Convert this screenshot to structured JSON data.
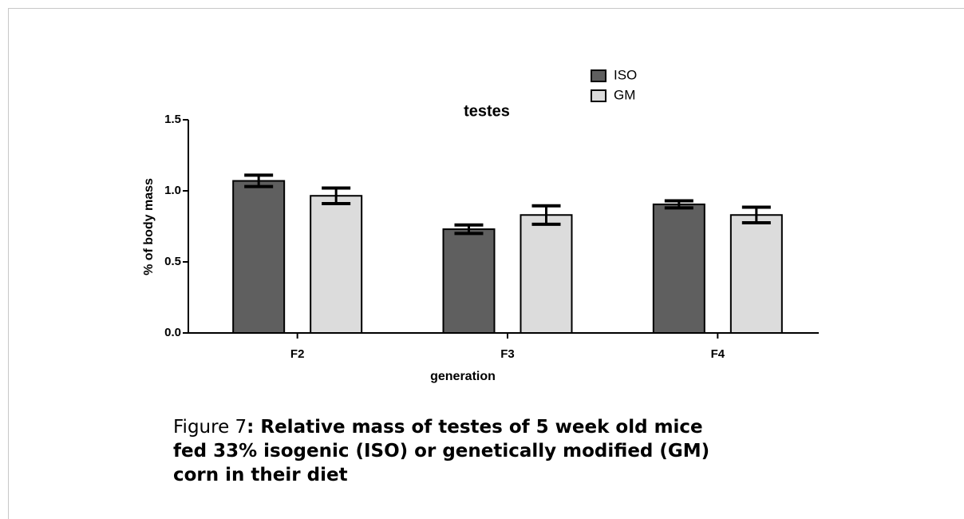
{
  "chart_data": {
    "type": "bar",
    "title": "testes",
    "x_label": "generation",
    "y_label": "% of body mass",
    "categories": [
      "F2",
      "F3",
      "F4"
    ],
    "series": [
      {
        "name": "ISO",
        "color": "#5f5f5f",
        "values": [
          1.07,
          0.73,
          0.905
        ],
        "errors": [
          0.04,
          0.03,
          0.025
        ]
      },
      {
        "name": "GM",
        "color": "#dcdcdc",
        "values": [
          0.965,
          0.83,
          0.83
        ],
        "errors": [
          0.055,
          0.065,
          0.055
        ]
      }
    ],
    "ylim": [
      0,
      1.5
    ],
    "yticks": [
      {
        "value": 0,
        "label": "0.0"
      },
      0.5,
      {
        "value": 1,
        "label": "1.0"
      },
      1.5
    ],
    "legend": "top-right"
  },
  "caption": {
    "label": "Figure 7",
    "lines": [
      ": Relative mass of testes of 5 week old mice",
      "fed 33% isogenic (ISO) or genetically modified (GM)",
      "corn in their diet"
    ]
  }
}
